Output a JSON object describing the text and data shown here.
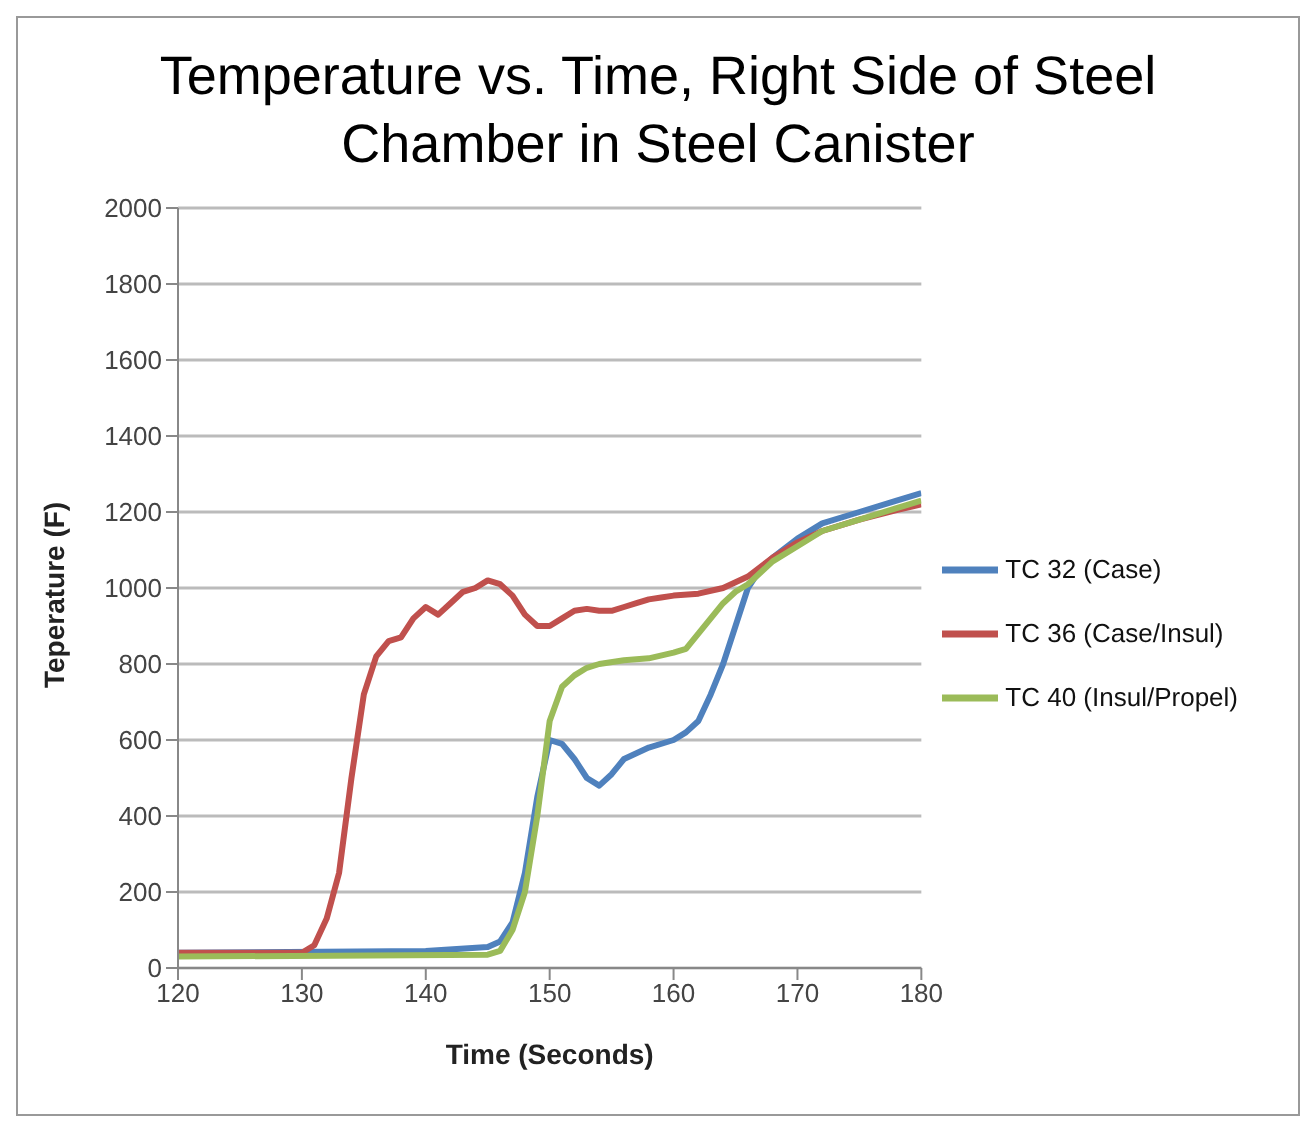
{
  "chart_data": {
    "type": "line",
    "title": "Temperature vs. Time, Right Side of Steel Chamber in Steel Canister",
    "xlabel": "Time (Seconds)",
    "ylabel": "Teperature (F)",
    "xlim": [
      120,
      180
    ],
    "xticks": [
      120,
      130,
      140,
      150,
      160,
      170,
      180
    ],
    "ylim": [
      0,
      2000
    ],
    "yticks": [
      0,
      200,
      400,
      600,
      800,
      1000,
      1200,
      1400,
      1600,
      1800,
      2000
    ],
    "grid": "y",
    "legend": "right",
    "marker": "none",
    "line_style": "solid",
    "series": [
      {
        "name": "TC 32 (Case)",
        "color": "#4f81bd",
        "x": [
          120,
          140,
          145,
          146,
          147,
          148,
          149,
          150,
          151,
          152,
          153,
          154,
          155,
          156,
          158,
          160,
          161,
          162,
          163,
          164,
          165,
          166,
          167,
          168,
          170,
          172,
          175,
          178,
          180
        ],
        "values": [
          40,
          45,
          55,
          70,
          120,
          250,
          450,
          600,
          590,
          550,
          500,
          480,
          510,
          550,
          580,
          600,
          620,
          650,
          720,
          800,
          900,
          1000,
          1050,
          1080,
          1130,
          1170,
          1200,
          1230,
          1250
        ]
      },
      {
        "name": "TC 36 (Case/Insul)",
        "color": "#c0504d",
        "x": [
          120,
          130,
          131,
          132,
          133,
          134,
          135,
          136,
          137,
          138,
          139,
          140,
          141,
          142,
          143,
          144,
          145,
          146,
          147,
          148,
          149,
          150,
          151,
          152,
          153,
          154,
          155,
          156,
          157,
          158,
          159,
          160,
          162,
          164,
          166,
          168,
          170,
          172,
          175,
          178,
          180
        ],
        "values": [
          40,
          40,
          60,
          130,
          250,
          500,
          720,
          820,
          860,
          870,
          920,
          950,
          930,
          960,
          990,
          1000,
          1020,
          1010,
          980,
          930,
          900,
          900,
          920,
          940,
          945,
          940,
          940,
          950,
          960,
          970,
          975,
          980,
          985,
          1000,
          1030,
          1080,
          1120,
          1150,
          1180,
          1205,
          1220
        ]
      },
      {
        "name": "TC 40 (Insul/Propel)",
        "color": "#9bbb59",
        "x": [
          120,
          145,
          146,
          147,
          148,
          149,
          150,
          151,
          152,
          153,
          154,
          156,
          158,
          160,
          161,
          162,
          163,
          164,
          165,
          166,
          167,
          168,
          170,
          172,
          175,
          178,
          180
        ],
        "values": [
          30,
          35,
          45,
          100,
          200,
          400,
          650,
          740,
          770,
          790,
          800,
          810,
          815,
          830,
          840,
          880,
          920,
          960,
          990,
          1010,
          1040,
          1070,
          1110,
          1150,
          1180,
          1210,
          1230
        ]
      }
    ]
  }
}
